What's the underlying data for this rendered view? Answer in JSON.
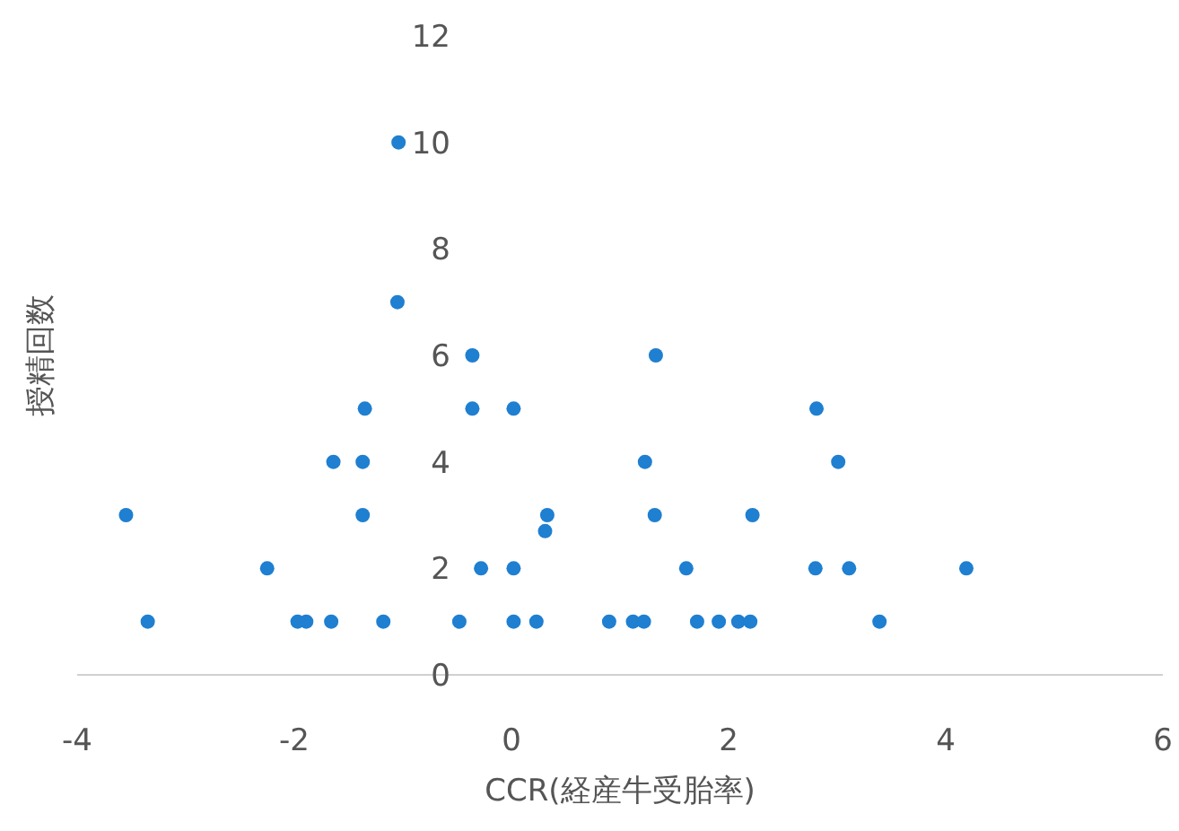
{
  "chart_data": {
    "type": "scatter",
    "xlabel": "CCR(経産牛受胎率)",
    "ylabel": "授精回数",
    "xlim": [
      -4,
      6
    ],
    "ylim": [
      0,
      12
    ],
    "xticks": [
      -4,
      -2,
      0,
      2,
      4,
      6
    ],
    "yticks": [
      0,
      2,
      4,
      6,
      8,
      10,
      12
    ],
    "marker": "circle",
    "x": [
      -3.55,
      -3.35,
      -2.25,
      -1.97,
      -1.89,
      -1.66,
      -1.64,
      -1.35,
      -1.37,
      -1.37,
      -1.18,
      -1.04,
      -1.05,
      -0.48,
      -0.36,
      -0.36,
      -0.28,
      0.02,
      0.02,
      0.02,
      0.23,
      0.33,
      0.31,
      1.33,
      2.81,
      1.23,
      3.01,
      1.32,
      2.22,
      1.61,
      2.8,
      3.11,
      4.19,
      0.9,
      1.12,
      1.22,
      1.71,
      1.91,
      2.09,
      2.2,
      3.39
    ],
    "series": [
      {
        "color": "#1f7fd0",
        "values": [
          3,
          1,
          2,
          1,
          1,
          1,
          4,
          5,
          4,
          3,
          1,
          10,
          7,
          1,
          6,
          5,
          2,
          5,
          2,
          1,
          1,
          3,
          2.7,
          6,
          5,
          4,
          4,
          3,
          3,
          2,
          2,
          2,
          2,
          1,
          1,
          1,
          1,
          1,
          1,
          1,
          1
        ]
      }
    ]
  }
}
